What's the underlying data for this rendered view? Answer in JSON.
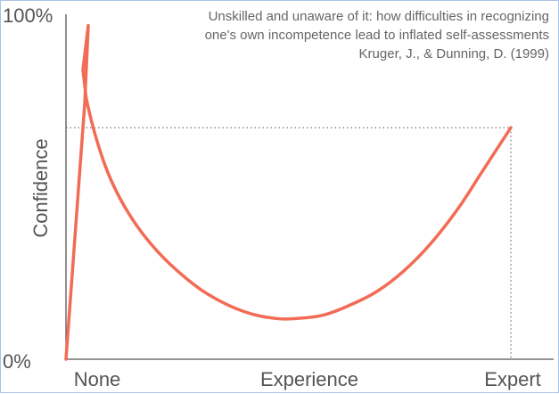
{
  "chart_data": {
    "type": "line",
    "title": "",
    "annotation": [
      "Unskilled and unaware of it: how difficulties in recognizing",
      "one's own incompetence lead to inflated self-assessments",
      "Kruger, J., & Dunning, D. (1999)"
    ],
    "xlabel": "",
    "ylabel": "Confidence",
    "x_tick_labels": [
      "None",
      "Experience",
      "Expert"
    ],
    "y_tick_labels": [
      "0%",
      "100%"
    ],
    "xlim": [
      0,
      100
    ],
    "ylim": [
      0,
      100
    ],
    "grid": false,
    "legend": "none",
    "series": [
      {
        "color": "#f26b55",
        "x": [
          0,
          4.2,
          5.0,
          3.8,
          4.5,
          7,
          10,
          14,
          19,
          25,
          32,
          40,
          47,
          52,
          58,
          64,
          70,
          76,
          82,
          88,
          93,
          97,
          100
        ],
        "y": [
          0,
          75,
          98,
          85,
          77,
          64,
          53,
          43,
          34,
          26,
          19,
          14,
          12,
          12,
          13,
          16,
          20,
          26,
          34,
          44,
          54,
          62,
          68
        ]
      }
    ],
    "reference_lines": {
      "color": "#555555",
      "style": "dotted",
      "y_value": 68,
      "x_value": 100
    }
  }
}
